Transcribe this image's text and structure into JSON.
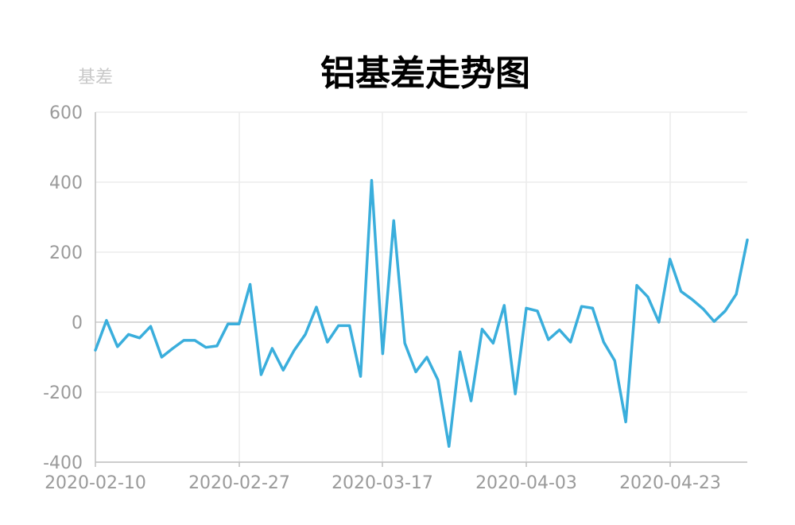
{
  "chart_data": {
    "type": "line",
    "title": "铝基差走势图",
    "ylabel": "基差",
    "xlabel": "",
    "ylim": [
      -400,
      600
    ],
    "y_ticks": [
      600,
      400,
      200,
      0,
      -200,
      -400
    ],
    "x_tick_labels": [
      "2020-02-10",
      "2020-02-27",
      "2020-03-17",
      "2020-04-03",
      "2020-04-23"
    ],
    "grid": true,
    "series_color": "#3aaedc",
    "series": [
      {
        "values": [
          -80,
          5,
          -70,
          -35,
          -45,
          -12,
          -100,
          -75,
          -52,
          -52,
          -72,
          -68,
          -5,
          -5,
          108,
          -150,
          -75,
          -137,
          -80,
          -35,
          43,
          -57,
          -10,
          -10,
          -155,
          405,
          -90,
          290,
          -60,
          -142,
          -100,
          -165,
          -355,
          -85,
          -225,
          -20,
          -60,
          48,
          -205,
          40,
          32,
          -50,
          -22,
          -57,
          45,
          40,
          -57,
          -110,
          -285,
          105,
          72,
          0,
          180,
          88,
          65,
          38,
          2,
          32,
          80,
          235
        ]
      }
    ]
  }
}
